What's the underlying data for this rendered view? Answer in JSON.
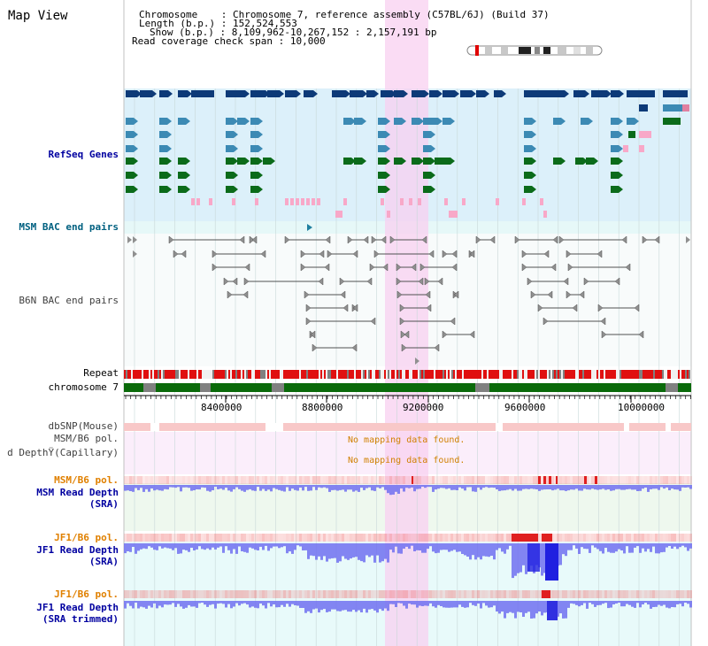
{
  "view": {
    "title": "Map View"
  },
  "header": {
    "chromosome_label": "Chromosome",
    "chromosome_value": "Chromosome 7, reference assembly (C57BL/6J) (Build 37)",
    "length_label": "Length (b.p.)",
    "length_value": "152,524,553",
    "show_label": "Show (b.p.)",
    "show_value": "8,109,962-10,267,152 : 2,157,191 bp",
    "coverage_label": "Read coverage check span",
    "coverage_value": "10,000"
  },
  "tracks": {
    "refseq": "RefSeq Genes",
    "msm_bac": "MSM BAC end pairs",
    "b6n_bac": "B6N BAC end pairs",
    "repeat": "Repeat",
    "chromosome": "chromosome 7",
    "dbsnp": "dbSNP(Mouse)",
    "msm_b6_pol_1": "MSM/B6 pol.",
    "capillary": "d DepthŸ(Capillary)",
    "msm_b6_pol_2": "MSM/B6 pol.",
    "msm_depth": "MSM Read Depth",
    "msm_depth_src": "(SRA)",
    "jf1_pol_1": "JF1/B6 pol.",
    "jf1_depth_1": "JF1 Read Depth",
    "jf1_depth_1_src": "(SRA)",
    "jf1_pol_2": "JF1/B6 pol.",
    "jf1_depth_2": "JF1 Read Depth",
    "jf1_depth_2_src": "(SRA trimmed)"
  },
  "messages": {
    "no_mapping_1": "No mapping data found.",
    "no_mapping_2": "No mapping data found."
  },
  "axis": {
    "ticks": [
      "8400000",
      "8800000",
      "9200000",
      "9600000",
      "10000000"
    ]
  },
  "colors": {
    "refseq_bg": "#dcf0fa",
    "bac_bg": "#f0f8f8",
    "pol_bg": "#fbeefb",
    "depth_bg": "#eef8ee",
    "jf1_bg": "#e8fafa",
    "highlight": "#f8d0f0",
    "gene_navy": "#0d3a78",
    "gene_teal": "#3c8ab4",
    "gene_green": "#0b6b1a",
    "gene_pink": "#f8a8c8",
    "repeat_red": "#e01010",
    "chrom_green": "#0a6a0a",
    "depth_blue": "#7070f0",
    "pol_red": "#e04040"
  }
}
